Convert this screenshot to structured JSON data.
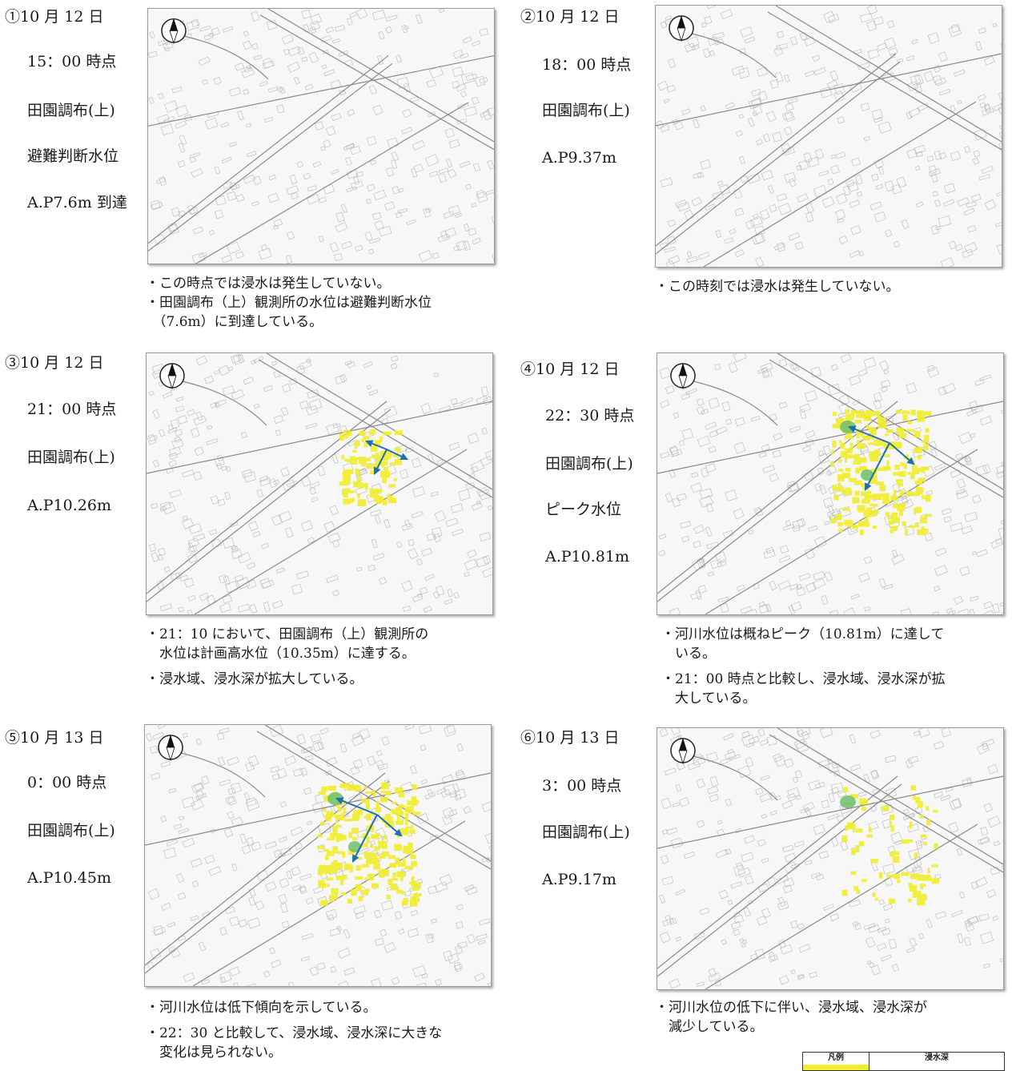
{
  "colors": {
    "flood": "#f2ee2c",
    "deep_flood": "#6fbf6a",
    "flow_arrow": "#1f6fb2",
    "map_line": "#b8b8b8"
  },
  "panels": [
    {
      "id": "1",
      "lines": [
        "①10 月 12 日",
        "15：00 時点",
        "田園調布(上)",
        "避難判断水位",
        "A.P7.6m 到達"
      ],
      "notes": [
        "・この時点では浸水は発生していない。",
        "・田園調布（上）観測所の水位は避難判断水位",
        "　（7.6m）に到達している。"
      ],
      "flood_level": 0
    },
    {
      "id": "2",
      "lines": [
        "②10 月 12 日",
        "18：00 時点",
        "田園調布(上)",
        "A.P9.37m"
      ],
      "notes": [
        "・この時刻では浸水は発生していない。"
      ],
      "flood_level": 0
    },
    {
      "id": "3",
      "lines": [
        "③10 月 12 日",
        "21：00 時点",
        "田園調布(上)",
        "A.P10.26m"
      ],
      "notes": [
        "・21：10 において、田園調布（上）観測所の",
        "　水位は計画高水位（10.35m）に達する。",
        "・浸水域、浸水深が拡大している。"
      ],
      "flood_level": 1
    },
    {
      "id": "4",
      "lines": [
        "④10 月 12 日",
        "22：30 時点",
        "田園調布(上)",
        "ピーク水位",
        "A.P10.81m"
      ],
      "notes": [
        "・河川水位は概ねピーク（10.81m）に達して",
        "　いる。",
        "・21：00 時点と比較し、浸水域、浸水深が拡",
        "　大している。"
      ],
      "flood_level": 3
    },
    {
      "id": "5",
      "lines": [
        "⑤10 月 13 日",
        "0：00 時点",
        "田園調布(上)",
        "A.P10.45m"
      ],
      "notes": [
        "・河川水位は低下傾向を示している。",
        "・22：30 と比較して、浸水域、浸水深に大きな",
        "　変化は見られない。"
      ],
      "flood_level": 3
    },
    {
      "id": "6",
      "lines": [
        "⑥10 月 13 日",
        "3：00 時点",
        "田園調布(上)",
        "A.P9.17m"
      ],
      "notes": [
        "・河川水位の低下に伴い、浸水域、浸水深が",
        "　減少している。"
      ],
      "flood_level": 2
    }
  ],
  "legend": {
    "col1": "凡例",
    "col2": "浸水深"
  }
}
